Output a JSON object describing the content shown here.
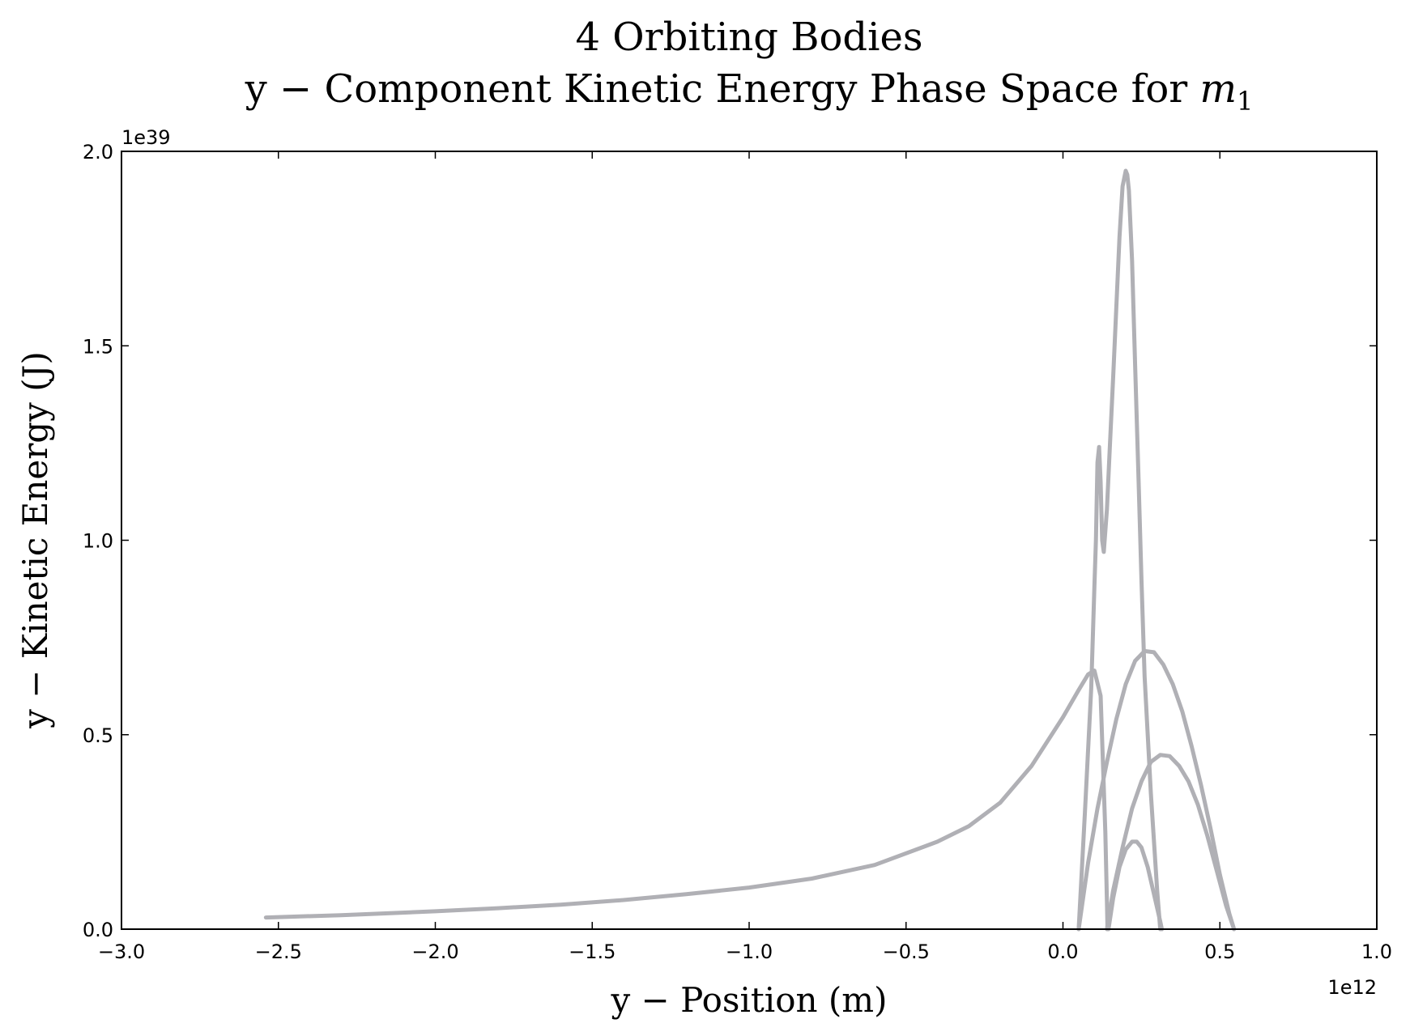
{
  "chart_data": {
    "type": "line",
    "title_line1": "4 Orbiting Bodies",
    "title_line2_prefix": "y − Component Kinetic Energy Phase Space for ",
    "title_line2_var": "m",
    "title_line2_sub": "1",
    "xlabel": "y − Position (m)",
    "ylabel": "y − Kinetic Energy (J)",
    "x_multiplier": "1e12",
    "y_multiplier": "1e39",
    "xlim": [
      -3.0,
      1.0
    ],
    "ylim": [
      0.0,
      2.0
    ],
    "xticks": [
      -3.0,
      -2.5,
      -2.0,
      -1.5,
      -1.0,
      -0.5,
      0.0,
      0.5,
      1.0
    ],
    "xtick_labels": [
      "−3.0",
      "−2.5",
      "−2.0",
      "−1.5",
      "−1.0",
      "−0.5",
      "0.0",
      "0.5",
      "1.0"
    ],
    "yticks": [
      0.0,
      0.5,
      1.0,
      1.5,
      2.0
    ],
    "ytick_labels": [
      "0.0",
      "0.5",
      "1.0",
      "1.5",
      "2.0"
    ],
    "grid": false,
    "line_color": "#b0b0b5",
    "series": [
      {
        "x": [
          -2.54,
          -2.3,
          -2.0,
          -1.8,
          -1.6,
          -1.4,
          -1.2,
          -1.0,
          -0.8,
          -0.6,
          -0.4,
          -0.3,
          -0.2,
          -0.1,
          0.0,
          0.05,
          0.08,
          0.1,
          0.12,
          0.135,
          0.14,
          0.142
        ],
        "y": [
          0.03,
          0.036,
          0.046,
          0.054,
          0.063,
          0.075,
          0.09,
          0.107,
          0.13,
          0.165,
          0.225,
          0.265,
          0.325,
          0.42,
          0.545,
          0.615,
          0.655,
          0.665,
          0.6,
          0.25,
          0.07,
          0.0
        ]
      },
      {
        "x": [
          0.05,
          0.07,
          0.09,
          0.1,
          0.105,
          0.11,
          0.115,
          0.12,
          0.125,
          0.13,
          0.14,
          0.15,
          0.16,
          0.17,
          0.18,
          0.19,
          0.2,
          0.205,
          0.21,
          0.22,
          0.23,
          0.24,
          0.25,
          0.26,
          0.28,
          0.3,
          0.31
        ],
        "y": [
          0.0,
          0.3,
          0.62,
          0.88,
          1.0,
          1.2,
          1.24,
          1.15,
          1.0,
          0.97,
          1.08,
          1.25,
          1.42,
          1.6,
          1.78,
          1.91,
          1.95,
          1.94,
          1.9,
          1.72,
          1.45,
          1.18,
          0.9,
          0.65,
          0.35,
          0.1,
          0.0
        ]
      },
      {
        "x": [
          0.05,
          0.08,
          0.11,
          0.14,
          0.17,
          0.2,
          0.23,
          0.26,
          0.29,
          0.32,
          0.35,
          0.38,
          0.41,
          0.44,
          0.47,
          0.5,
          0.53,
          0.545
        ],
        "y": [
          0.0,
          0.17,
          0.31,
          0.43,
          0.54,
          0.63,
          0.69,
          0.715,
          0.712,
          0.68,
          0.63,
          0.56,
          0.47,
          0.37,
          0.26,
          0.14,
          0.04,
          0.0
        ]
      },
      {
        "x": [
          0.14,
          0.16,
          0.19,
          0.22,
          0.25,
          0.28,
          0.31,
          0.34,
          0.37,
          0.4,
          0.43,
          0.46,
          0.49,
          0.52,
          0.545
        ],
        "y": [
          0.0,
          0.1,
          0.21,
          0.31,
          0.38,
          0.43,
          0.448,
          0.445,
          0.42,
          0.38,
          0.32,
          0.24,
          0.15,
          0.06,
          0.0
        ]
      },
      {
        "x": [
          0.145,
          0.16,
          0.18,
          0.2,
          0.22,
          0.235,
          0.25,
          0.27,
          0.29,
          0.31,
          0.315
        ],
        "y": [
          0.0,
          0.08,
          0.16,
          0.205,
          0.225,
          0.225,
          0.21,
          0.16,
          0.09,
          0.02,
          0.0
        ]
      }
    ]
  }
}
